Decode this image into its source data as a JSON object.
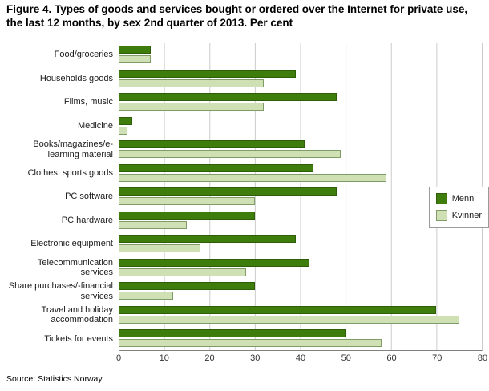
{
  "title": "Figure 4. Types of goods and services bought or ordered over the Internet for private use, the last 12 months, by sex 2nd quarter of 2013. Per cent",
  "source": "Source: Statistics Norway.",
  "chart_data": {
    "type": "bar",
    "orientation": "horizontal",
    "title": "Figure 4. Types of goods and services bought or ordered over the Internet for private use, the last 12 months, by sex 2nd quarter of 2013. Per cent",
    "categories": [
      "Food/groceries",
      "Households goods",
      "Films, music",
      "Medicine",
      "Books/magazines/e-learning material",
      "Clothes, sports goods",
      "PC software",
      "PC hardware",
      "Electronic equipment",
      "Telecommunication services",
      "Share purchases/-financial services",
      "Travel and holiday accommodation",
      "Tickets for events"
    ],
    "series": [
      {
        "name": "Menn",
        "color": "#3e7d0c",
        "border": "#2e5f08",
        "values": [
          7,
          39,
          48,
          3,
          41,
          43,
          48,
          30,
          39,
          42,
          30,
          70,
          50
        ]
      },
      {
        "name": "Kvinner",
        "color": "#cfe0b5",
        "border": "#7f9c66",
        "values": [
          7,
          32,
          32,
          2,
          49,
          59,
          30,
          15,
          18,
          28,
          12,
          75,
          58
        ]
      }
    ],
    "xlim": [
      0,
      80
    ],
    "xticks": [
      0,
      10,
      20,
      30,
      40,
      50,
      60,
      70,
      80
    ],
    "grid": true,
    "grid_color": "#cccccc",
    "legend_position": "right-middle"
  }
}
